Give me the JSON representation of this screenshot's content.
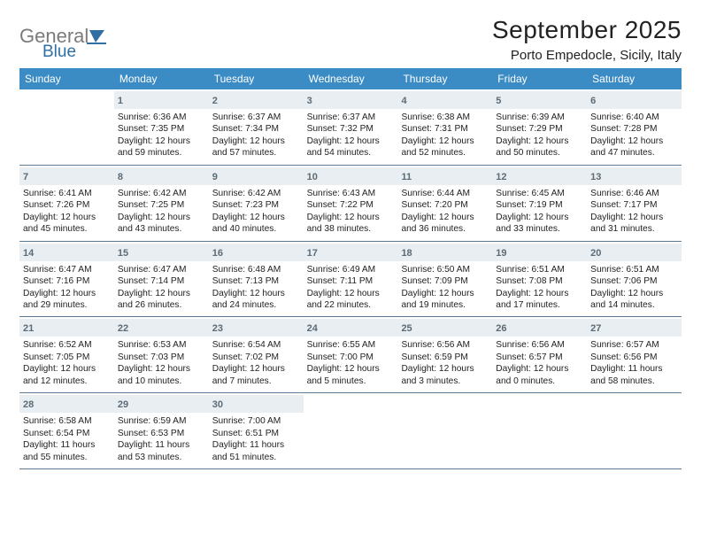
{
  "logo": {
    "word1": "General",
    "word2": "Blue",
    "word1_color": "#7b7b7b",
    "word2_color": "#2f6fa3",
    "sail_color": "#2f6fa3"
  },
  "title": "September 2025",
  "location": "Porto Empedocle, Sicily, Italy",
  "colors": {
    "header_bg": "#3b8bc4",
    "header_fg": "#ffffff",
    "daynum_bg": "#e8eef2",
    "daynum_fg": "#5c6b76",
    "rule": "#5a7a95",
    "text": "#222222"
  },
  "day_names": [
    "Sunday",
    "Monday",
    "Tuesday",
    "Wednesday",
    "Thursday",
    "Friday",
    "Saturday"
  ],
  "weeks": [
    [
      null,
      {
        "n": "1",
        "sr": "6:36 AM",
        "ss": "7:35 PM",
        "dh": "12",
        "dm": "59"
      },
      {
        "n": "2",
        "sr": "6:37 AM",
        "ss": "7:34 PM",
        "dh": "12",
        "dm": "57"
      },
      {
        "n": "3",
        "sr": "6:37 AM",
        "ss": "7:32 PM",
        "dh": "12",
        "dm": "54"
      },
      {
        "n": "4",
        "sr": "6:38 AM",
        "ss": "7:31 PM",
        "dh": "12",
        "dm": "52"
      },
      {
        "n": "5",
        "sr": "6:39 AM",
        "ss": "7:29 PM",
        "dh": "12",
        "dm": "50"
      },
      {
        "n": "6",
        "sr": "6:40 AM",
        "ss": "7:28 PM",
        "dh": "12",
        "dm": "47"
      }
    ],
    [
      {
        "n": "7",
        "sr": "6:41 AM",
        "ss": "7:26 PM",
        "dh": "12",
        "dm": "45"
      },
      {
        "n": "8",
        "sr": "6:42 AM",
        "ss": "7:25 PM",
        "dh": "12",
        "dm": "43"
      },
      {
        "n": "9",
        "sr": "6:42 AM",
        "ss": "7:23 PM",
        "dh": "12",
        "dm": "40"
      },
      {
        "n": "10",
        "sr": "6:43 AM",
        "ss": "7:22 PM",
        "dh": "12",
        "dm": "38"
      },
      {
        "n": "11",
        "sr": "6:44 AM",
        "ss": "7:20 PM",
        "dh": "12",
        "dm": "36"
      },
      {
        "n": "12",
        "sr": "6:45 AM",
        "ss": "7:19 PM",
        "dh": "12",
        "dm": "33"
      },
      {
        "n": "13",
        "sr": "6:46 AM",
        "ss": "7:17 PM",
        "dh": "12",
        "dm": "31"
      }
    ],
    [
      {
        "n": "14",
        "sr": "6:47 AM",
        "ss": "7:16 PM",
        "dh": "12",
        "dm": "29"
      },
      {
        "n": "15",
        "sr": "6:47 AM",
        "ss": "7:14 PM",
        "dh": "12",
        "dm": "26"
      },
      {
        "n": "16",
        "sr": "6:48 AM",
        "ss": "7:13 PM",
        "dh": "12",
        "dm": "24"
      },
      {
        "n": "17",
        "sr": "6:49 AM",
        "ss": "7:11 PM",
        "dh": "12",
        "dm": "22"
      },
      {
        "n": "18",
        "sr": "6:50 AM",
        "ss": "7:09 PM",
        "dh": "12",
        "dm": "19"
      },
      {
        "n": "19",
        "sr": "6:51 AM",
        "ss": "7:08 PM",
        "dh": "12",
        "dm": "17"
      },
      {
        "n": "20",
        "sr": "6:51 AM",
        "ss": "7:06 PM",
        "dh": "12",
        "dm": "14"
      }
    ],
    [
      {
        "n": "21",
        "sr": "6:52 AM",
        "ss": "7:05 PM",
        "dh": "12",
        "dm": "12"
      },
      {
        "n": "22",
        "sr": "6:53 AM",
        "ss": "7:03 PM",
        "dh": "12",
        "dm": "10"
      },
      {
        "n": "23",
        "sr": "6:54 AM",
        "ss": "7:02 PM",
        "dh": "12",
        "dm": "7"
      },
      {
        "n": "24",
        "sr": "6:55 AM",
        "ss": "7:00 PM",
        "dh": "12",
        "dm": "5"
      },
      {
        "n": "25",
        "sr": "6:56 AM",
        "ss": "6:59 PM",
        "dh": "12",
        "dm": "3"
      },
      {
        "n": "26",
        "sr": "6:56 AM",
        "ss": "6:57 PM",
        "dh": "12",
        "dm": "0"
      },
      {
        "n": "27",
        "sr": "6:57 AM",
        "ss": "6:56 PM",
        "dh": "11",
        "dm": "58"
      }
    ],
    [
      {
        "n": "28",
        "sr": "6:58 AM",
        "ss": "6:54 PM",
        "dh": "11",
        "dm": "55"
      },
      {
        "n": "29",
        "sr": "6:59 AM",
        "ss": "6:53 PM",
        "dh": "11",
        "dm": "53"
      },
      {
        "n": "30",
        "sr": "7:00 AM",
        "ss": "6:51 PM",
        "dh": "11",
        "dm": "51"
      },
      null,
      null,
      null,
      null
    ]
  ],
  "labels": {
    "sunrise": "Sunrise:",
    "sunset": "Sunset:",
    "daylight": "Daylight:",
    "hours": "hours",
    "and": "and",
    "minutes": "minutes."
  }
}
